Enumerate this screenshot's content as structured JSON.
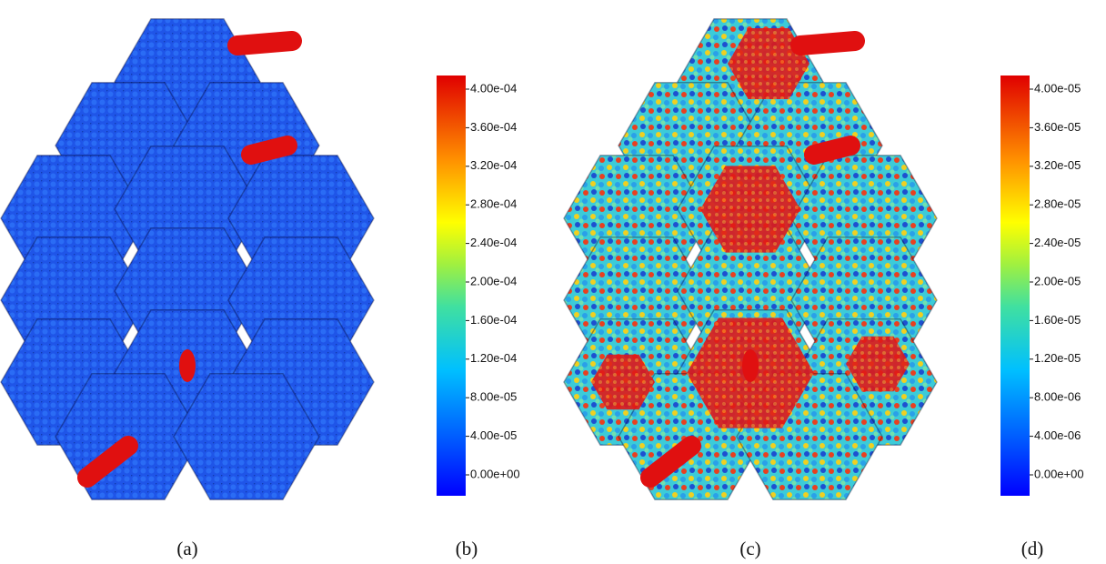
{
  "panels": [
    {
      "caption": "(a)"
    },
    {
      "caption": "(b)",
      "colorbar_ticks": [
        "4.00e-04",
        "3.60e-04",
        "3.20e-04",
        "2.80e-04",
        "2.40e-04",
        "2.00e-04",
        "1.60e-04",
        "1.20e-04",
        "8.00e-05",
        "4.00e-05",
        "0.00e+00"
      ]
    },
    {
      "caption": "(c)"
    },
    {
      "caption": "(d)",
      "colorbar_ticks": [
        "4.00e-05",
        "3.60e-05",
        "3.20e-05",
        "2.80e-05",
        "2.40e-05",
        "2.00e-05",
        "1.60e-05",
        "1.20e-05",
        "8.00e-06",
        "4.00e-06",
        "0.00e+00"
      ]
    }
  ]
}
